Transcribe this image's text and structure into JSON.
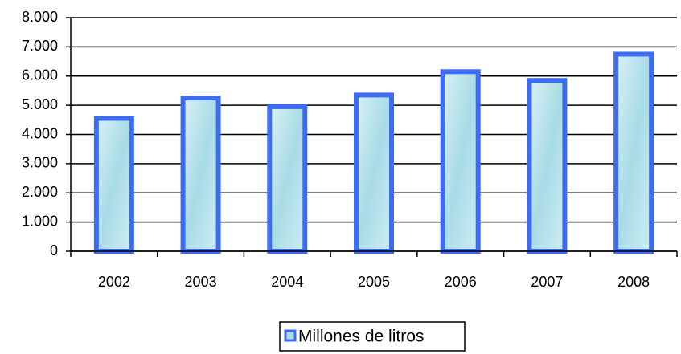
{
  "chart_data": {
    "type": "bar",
    "categories": [
      "2002",
      "2003",
      "2004",
      "2005",
      "2006",
      "2007",
      "2008"
    ],
    "series": [
      {
        "name": "Millones de litros",
        "color": "#3e6cf0",
        "values": [
          4550,
          5250,
          4950,
          5350,
          6150,
          5850,
          6750
        ]
      }
    ],
    "ylim": [
      0,
      8000
    ],
    "yticks": [
      0,
      {
        "value": 1000,
        "label": "1.000"
      },
      {
        "value": 2000,
        "label": "2.000"
      },
      {
        "value": 3000,
        "label": "3.000"
      },
      {
        "value": 4000,
        "label": "4.000"
      },
      {
        "value": 5000,
        "label": "5.000"
      },
      {
        "value": 6000,
        "label": "6.000"
      },
      {
        "value": 7000,
        "label": "7.000"
      },
      {
        "value": 8000,
        "label": "8.000"
      }
    ],
    "grid": true,
    "legend": "bottom"
  }
}
